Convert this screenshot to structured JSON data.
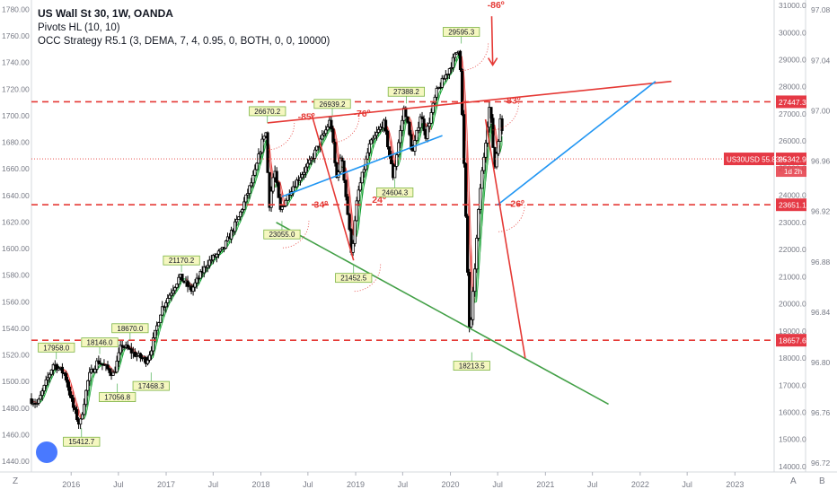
{
  "header": {
    "title": "US Wall St 30, 1W, OANDA",
    "indicator_1": "Pivots HL (10, 10)",
    "indicator_2": "OCC Strategy R5.1 (3, DEMA, 7, 4, 0.95, 0, BOTH, 0, 0, 10000)"
  },
  "colors": {
    "up": "#0a9c2c",
    "down": "#e53935",
    "channel_up": "#63c96a",
    "channel_down": "#ef8a8a",
    "trend_red": "#e53935",
    "trend_blue": "#2196f3",
    "trend_green": "#43a047",
    "price_badge": "#e53945",
    "pivot_fill": "#f5f7c0"
  },
  "axis_left": {
    "ticks": [
      "1780.00",
      "1760.00",
      "1740.00",
      "1720.00",
      "1700.00",
      "1680.00",
      "1660.00",
      "1640.00",
      "1620.00",
      "1600.00",
      "1580.00",
      "1560.00",
      "1540.00",
      "1520.00",
      "1500.00",
      "1480.00",
      "1460.00",
      "1440.00"
    ]
  },
  "axis_main": {
    "ticks": [
      "31000.0",
      "30000.0",
      "29000.0",
      "28000.0",
      "27000.0",
      "26000.0",
      "25000.0",
      "24000.0",
      "23000.0",
      "22000.0",
      "21000.0",
      "20000.0",
      "19000.0",
      "18000.0",
      "17000.0",
      "16000.0",
      "15000.0",
      "14000.0"
    ]
  },
  "axis_right": {
    "ticks": [
      "97.08",
      "97.04",
      "97.00",
      "96.96",
      "96.92",
      "96.88",
      "96.84",
      "96.80",
      "96.76",
      "96.72"
    ]
  },
  "axis_time": {
    "labels": [
      "2016",
      "Jul",
      "2017",
      "Jul",
      "2018",
      "Jul",
      "2019",
      "Jul",
      "2020",
      "Jul",
      "2021",
      "Jul",
      "2022",
      "Jul",
      "2023"
    ]
  },
  "price_labels": {
    "level_top": "27447.3",
    "current": "25342.9",
    "level_mid": "23651.1",
    "level_low": "18657.6",
    "symbol_tag": "US30USD 55.83%",
    "countdown": "1d 2h"
  },
  "pivot_labels": [
    "17958.0",
    "18146.0",
    "18670.0",
    "15412.7",
    "17056.8",
    "17468.3",
    "21170.2",
    "26670.2",
    "23055.0",
    "26939.2",
    "21452.5",
    "27388.2",
    "24604.3",
    "29595.3",
    "18213.5"
  ],
  "angle_labels": [
    "-86º",
    "-83º",
    "-85º",
    "-76º",
    "34º",
    "24º",
    "26º"
  ],
  "corner_labels": {
    "bottom_left": "Z",
    "auto": "A",
    "log": "B"
  },
  "chart_data": {
    "type": "candlestick",
    "title": "US Wall St 30, 1W, OANDA",
    "x_range": [
      "2015-08",
      "2023-06"
    ],
    "y_range": [
      13800,
      31200
    ],
    "right_scale_range": [
      96.713,
      97.088
    ],
    "left_scale_range": [
      1432,
      1787
    ],
    "path_points": [
      [
        "2015-08-01",
        16500
      ],
      [
        "2015-09-01",
        16300
      ],
      [
        "2015-11-01",
        17800
      ],
      [
        "2015-12-15",
        17400
      ],
      [
        "2016-01-15",
        16200
      ],
      [
        "2016-02-10",
        15500
      ],
      [
        "2016-03-15",
        17300
      ],
      [
        "2016-04-20",
        17900
      ],
      [
        "2016-06-20",
        17400
      ],
      [
        "2016-07-20",
        18500
      ],
      [
        "2016-09-15",
        18100
      ],
      [
        "2016-10-25",
        17900
      ],
      [
        "2016-11-10",
        18300
      ],
      [
        "2016-12-20",
        19800
      ],
      [
        "2017-03-01",
        21000
      ],
      [
        "2017-04-15",
        20500
      ],
      [
        "2017-06-15",
        21500
      ],
      [
        "2017-08-15",
        22000
      ],
      [
        "2017-10-15",
        23200
      ],
      [
        "2017-12-15",
        24800
      ],
      [
        "2018-01-26",
        26500
      ],
      [
        "2018-02-09",
        23600
      ],
      [
        "2018-03-01",
        25000
      ],
      [
        "2018-03-23",
        23400
      ],
      [
        "2018-05-01",
        24200
      ],
      [
        "2018-06-15",
        24800
      ],
      [
        "2018-07-15",
        25200
      ],
      [
        "2018-09-15",
        26400
      ],
      [
        "2018-10-03",
        26800
      ],
      [
        "2018-10-26",
        24600
      ],
      [
        "2018-11-15",
        25500
      ],
      [
        "2018-12-24",
        21800
      ],
      [
        "2019-01-15",
        24000
      ],
      [
        "2019-03-01",
        25800
      ],
      [
        "2019-04-26",
        26700
      ],
      [
        "2019-06-01",
        24700
      ],
      [
        "2019-07-15",
        27300
      ],
      [
        "2019-08-15",
        25500
      ],
      [
        "2019-09-15",
        27000
      ],
      [
        "2019-10-05",
        26200
      ],
      [
        "2019-11-15",
        27800
      ],
      [
        "2019-12-31",
        28600
      ],
      [
        "2020-02-12",
        29500
      ],
      [
        "2020-02-28",
        25400
      ],
      [
        "2020-03-23",
        18600
      ],
      [
        "2020-04-30",
        24100
      ],
      [
        "2020-06-08",
        27400
      ],
      [
        "2020-06-26",
        25000
      ],
      [
        "2020-07-10",
        26000
      ],
      [
        "2020-07-17",
        26800
      ],
      [
        "2020-07-24",
        26400
      ]
    ],
    "horizontal_levels": [
      27447.3,
      23651.1,
      18657.6
    ],
    "current_price": 25342.9,
    "pivots": [
      {
        "date": "2015-11-05",
        "value": 17958.0,
        "kind": "high"
      },
      {
        "date": "2016-04-20",
        "value": 18146.0,
        "kind": "high"
      },
      {
        "date": "2016-08-15",
        "value": 18670.0,
        "kind": "high"
      },
      {
        "date": "2016-02-10",
        "value": 15412.7,
        "kind": "low"
      },
      {
        "date": "2016-06-27",
        "value": 17056.8,
        "kind": "low"
      },
      {
        "date": "2016-11-04",
        "value": 17468.3,
        "kind": "low"
      },
      {
        "date": "2017-03-01",
        "value": 21170.2,
        "kind": "high"
      },
      {
        "date": "2018-01-26",
        "value": 26670.2,
        "kind": "high"
      },
      {
        "date": "2018-03-23",
        "value": 23055.0,
        "kind": "low"
      },
      {
        "date": "2018-10-03",
        "value": 26939.2,
        "kind": "high"
      },
      {
        "date": "2018-12-24",
        "value": 21452.5,
        "kind": "low"
      },
      {
        "date": "2019-07-15",
        "value": 27388.2,
        "kind": "high"
      },
      {
        "date": "2019-06-01",
        "value": 24604.3,
        "kind": "low"
      },
      {
        "date": "2020-02-12",
        "value": 29595.3,
        "kind": "high"
      },
      {
        "date": "2020-03-23",
        "value": 18213.5,
        "kind": "low"
      }
    ],
    "trendlines": [
      {
        "color": "red",
        "from": [
          "2018-01-26",
          26670
        ],
        "to": [
          "2022-05-01",
          28200
        ]
      },
      {
        "color": "blue",
        "from": [
          "2018-03-23",
          23950
        ],
        "to": [
          "2019-12-01",
          26200
        ]
      },
      {
        "color": "blue",
        "from": [
          "2020-07-01",
          23650
        ],
        "to": [
          "2022-03-01",
          28200
        ]
      },
      {
        "color": "green",
        "from": [
          "2018-03-01",
          23000
        ],
        "to": [
          "2021-09-01",
          16300
        ]
      },
      {
        "color": "red",
        "from": [
          "2018-07-15",
          27000
        ],
        "to": [
          "2018-12-24",
          21600
        ]
      },
      {
        "color": "red",
        "from": [
          "2020-05-15",
          26800
        ],
        "to": [
          "2020-10-15",
          18000
        ]
      },
      {
        "color": "red",
        "from": [
          "2020-06-08",
          30600
        ],
        "to": [
          "2020-06-12",
          28800
        ]
      }
    ]
  }
}
